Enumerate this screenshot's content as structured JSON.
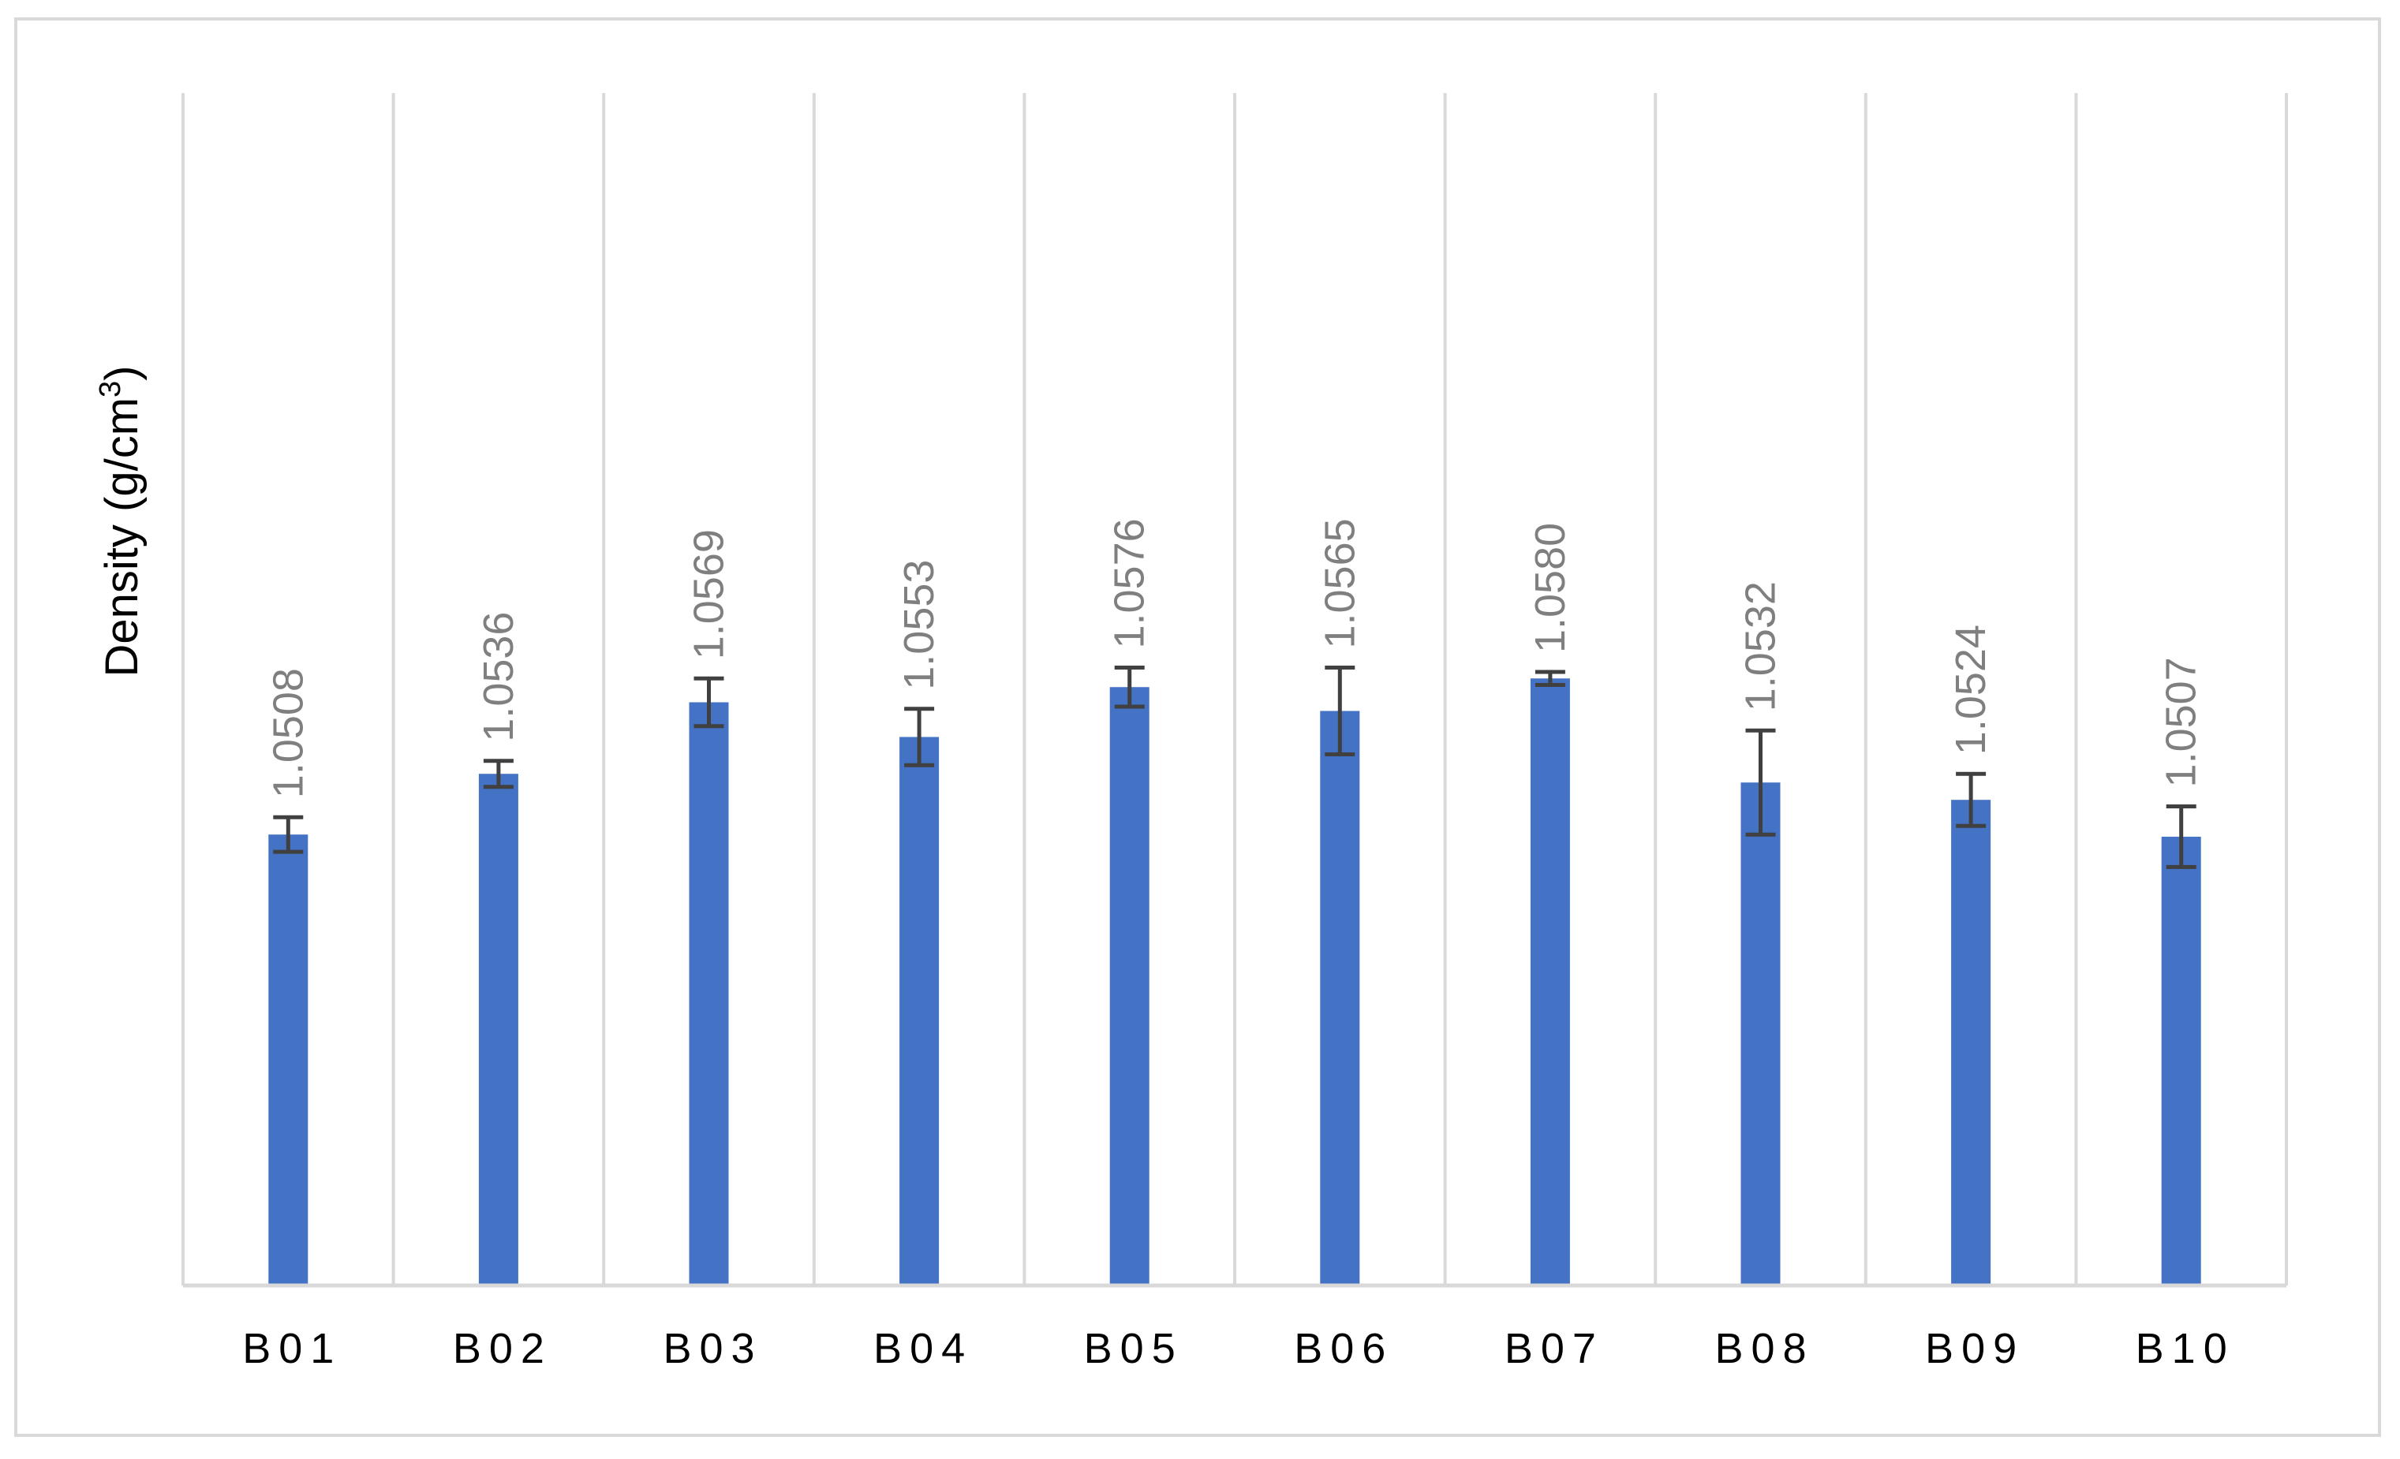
{
  "chart_data": {
    "type": "bar",
    "title": "",
    "xlabel": "",
    "ylabel": "Density (g/cm",
    "ylabel_superscript": "3",
    "ylabel_suffix": ")",
    "categories": [
      "B01",
      "B02",
      "B03",
      "B04",
      "B05",
      "B06",
      "B07",
      "B08",
      "B09",
      "B10"
    ],
    "values": [
      1.0508,
      1.0536,
      1.0569,
      1.0553,
      1.0576,
      1.0565,
      1.058,
      1.0532,
      1.0524,
      1.0507
    ],
    "data_labels": [
      "1.0508",
      "1.0536",
      "1.0569",
      "1.0553",
      "1.0576",
      "1.0565",
      "1.0580",
      "1.0532",
      "1.0524",
      "1.0507"
    ],
    "error": [
      0.0008,
      0.0006,
      0.0011,
      0.0013,
      0.0009,
      0.002,
      0.0003,
      0.0024,
      0.0012,
      0.0014
    ],
    "ylim": [
      1.03,
      1.085
    ],
    "grid": {
      "vertical_category_separators": true,
      "horizontal": false
    },
    "legend": "none",
    "colors": {
      "bar": "#4472c4",
      "error_bar": "#404040",
      "grid": "#d9d9d9",
      "data_label": "#7f7f7f",
      "axis": "#d9d9d9"
    }
  }
}
